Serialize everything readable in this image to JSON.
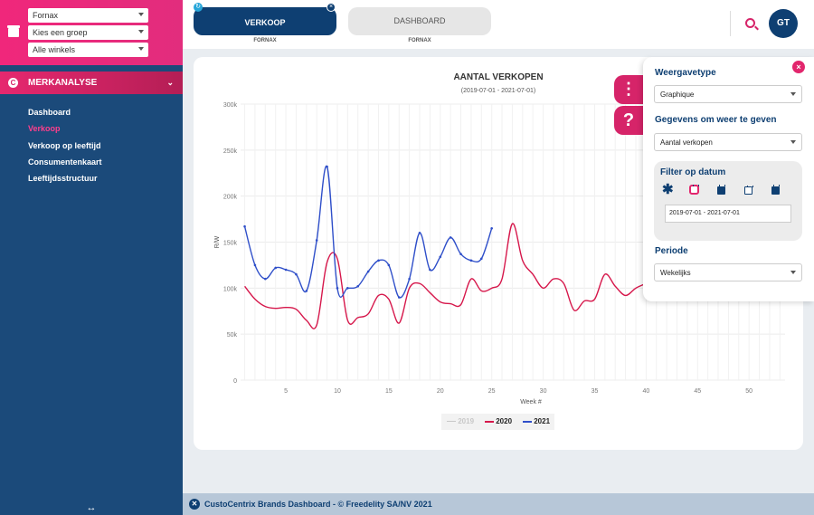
{
  "sidebar": {
    "selects": [
      {
        "value": "Fornax"
      },
      {
        "value": "Kies een groep"
      },
      {
        "value": "Alle winkels"
      }
    ],
    "section_title": "MERKANALYSE",
    "items": [
      {
        "label": "Dashboard"
      },
      {
        "label": "Verkoop"
      },
      {
        "label": "Verkoop op leeftijd"
      },
      {
        "label": "Consumentenkaart"
      },
      {
        "label": "Leeftijdsstructuur"
      }
    ],
    "active_item": "Verkoop",
    "expand_glyph": "↔"
  },
  "tabs": [
    {
      "label": "VERKOOP",
      "sub": "FORNAX"
    },
    {
      "label": "DASHBOARD",
      "sub": "FORNAX"
    }
  ],
  "user": {
    "initials": "GT"
  },
  "chart_data": {
    "type": "line",
    "title": "AANTAL VERKOPEN",
    "subtitle": "(2019-07-01 - 2021-07-01)",
    "xlabel": "Week #",
    "ylabel": "R/W",
    "ylim": [
      0,
      300000
    ],
    "y_ticks": [
      "0",
      "50k",
      "100k",
      "150k",
      "200k",
      "250k",
      "300k"
    ],
    "x_ticks": [
      "5",
      "10",
      "15",
      "20",
      "25",
      "30",
      "35",
      "40",
      "45",
      "50"
    ],
    "grid": true,
    "legend_placement": "bottom",
    "series": [
      {
        "name": "2019",
        "color": "#c8c8c8",
        "points": []
      },
      {
        "name": "2020",
        "color": "#d6174b",
        "points": [
          [
            1,
            102000
          ],
          [
            2,
            88000
          ],
          [
            3,
            80000
          ],
          [
            4,
            78000
          ],
          [
            5,
            79000
          ],
          [
            6,
            77000
          ],
          [
            7,
            65000
          ],
          [
            8,
            60000
          ],
          [
            9,
            128000
          ],
          [
            10,
            132000
          ],
          [
            11,
            65000
          ],
          [
            12,
            68000
          ],
          [
            13,
            72000
          ],
          [
            14,
            92000
          ],
          [
            15,
            88000
          ],
          [
            16,
            62000
          ],
          [
            17,
            100000
          ],
          [
            18,
            105000
          ],
          [
            19,
            95000
          ],
          [
            20,
            85000
          ],
          [
            21,
            83000
          ],
          [
            22,
            82000
          ],
          [
            23,
            110000
          ],
          [
            24,
            97000
          ],
          [
            25,
            100000
          ],
          [
            26,
            110000
          ],
          [
            27,
            170000
          ],
          [
            28,
            130000
          ],
          [
            29,
            115000
          ],
          [
            30,
            100000
          ],
          [
            31,
            110000
          ],
          [
            32,
            105000
          ],
          [
            33,
            76000
          ],
          [
            34,
            86000
          ],
          [
            35,
            88000
          ],
          [
            36,
            115000
          ],
          [
            37,
            102000
          ],
          [
            38,
            92000
          ],
          [
            39,
            100000
          ],
          [
            40,
            105000
          ]
        ]
      },
      {
        "name": "2021",
        "color": "#2f4fc9",
        "points": [
          [
            1,
            167000
          ],
          [
            2,
            125000
          ],
          [
            3,
            110000
          ],
          [
            4,
            122000
          ],
          [
            5,
            120000
          ],
          [
            6,
            115000
          ],
          [
            7,
            97000
          ],
          [
            8,
            152000
          ],
          [
            9,
            232000
          ],
          [
            10,
            100000
          ],
          [
            11,
            100000
          ],
          [
            12,
            102000
          ],
          [
            13,
            118000
          ],
          [
            14,
            130000
          ],
          [
            15,
            125000
          ],
          [
            16,
            90000
          ],
          [
            17,
            110000
          ],
          [
            18,
            160000
          ],
          [
            19,
            120000
          ],
          [
            20,
            134000
          ],
          [
            21,
            155000
          ],
          [
            22,
            137000
          ],
          [
            23,
            130000
          ],
          [
            24,
            132000
          ],
          [
            25,
            165000
          ]
        ]
      }
    ]
  },
  "panel": {
    "display_type_label": "Weergavetype",
    "display_type_value": "Graphique",
    "data_label": "Gegevens om weer te geven",
    "data_value": "Aantal verkopen",
    "date_filter_label": "Filter op datum",
    "date_range_value": "2019-07-01 - 2021-07-01",
    "period_label": "Periode",
    "period_value": "Wekelijks"
  },
  "footer": {
    "text": "CustoCentrix Brands Dashboard - © Freedelity SA/NV 2021"
  },
  "colors": {
    "brand_pink": "#e2266d",
    "brand_navy": "#0e3f72",
    "sidebar_bg": "#1b4a7a"
  }
}
